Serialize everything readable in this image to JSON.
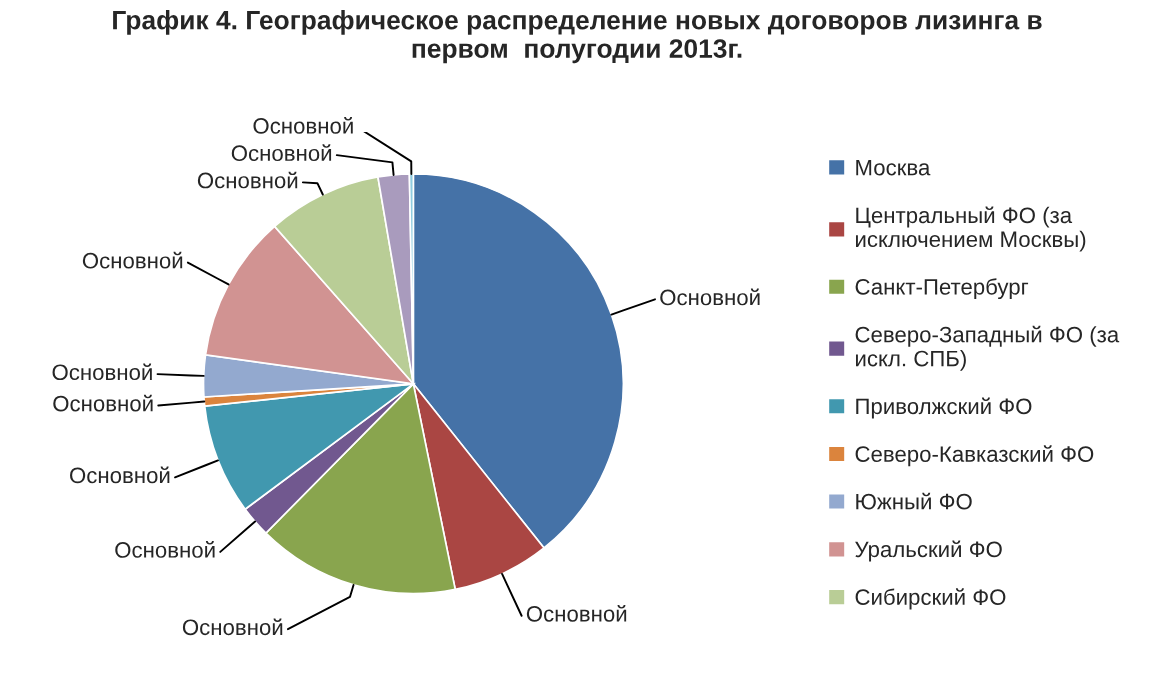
{
  "chart_data": {
    "type": "pie",
    "title": "График 4. Географическое распределение новых договоров лизинга в\nпервом  полугодии 2013г.",
    "categories": [
      "Москва",
      "Центральный ФО (за\nисключением Москвы)",
      "Санкт-Петербург",
      "Северо-Западный ФО (за\nискл. СПБ)",
      "Приволжский ФО",
      "Северо-Кавказский ФО",
      "Южный ФО",
      "Уральский ФО",
      "Сибирский ФО",
      null,
      null
    ],
    "values": [
      39.3,
      7.5,
      15.6,
      2.4,
      8.5,
      0.7,
      3.2,
      11.3,
      8.8,
      2.4,
      0.3
    ],
    "colors": [
      "#4572a7",
      "#aa4643",
      "#89a54e",
      "#71588f",
      "#4198af",
      "#db843d",
      "#93a9cf",
      "#d19392",
      "#b9cd96",
      "#a99bbd",
      "#8fcce0"
    ],
    "value_labels": [
      "Основной",
      "Основной",
      "Основной",
      "Основной",
      "Основной",
      "Основной",
      "Основной",
      "Основной",
      "Основной",
      "Основной",
      "Основной"
    ],
    "legend": "right"
  }
}
